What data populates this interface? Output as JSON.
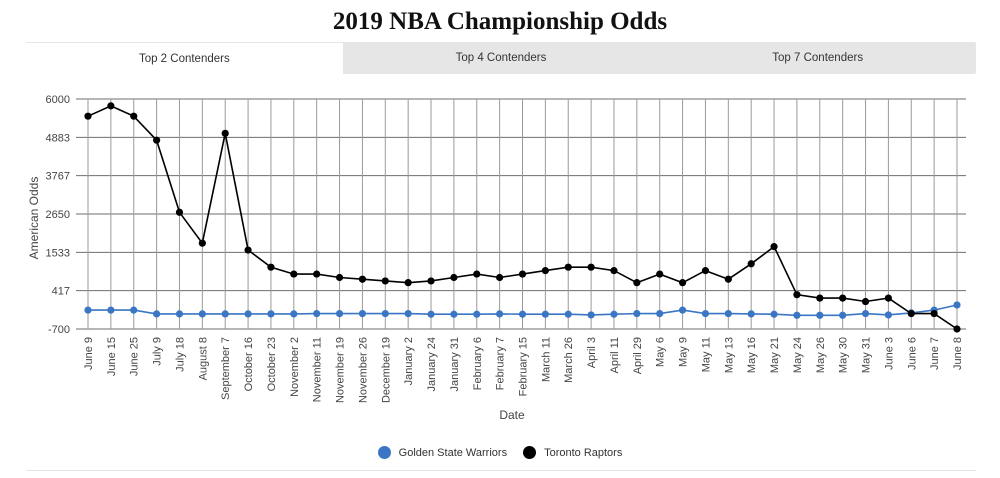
{
  "page": {
    "title": "2019 NBA Championship Odds"
  },
  "tabs": [
    {
      "label": "Top 2 Contenders",
      "active": true
    },
    {
      "label": "Top 4 Contenders",
      "active": false
    },
    {
      "label": "Top 7 Contenders",
      "active": false
    }
  ],
  "chart_data": {
    "type": "line",
    "title": "2019 NBA Championship Odds",
    "xlabel": "Date",
    "ylabel": "American Odds",
    "ylim": [
      -700,
      6000
    ],
    "yticks": [
      6000,
      4883,
      3767,
      2650,
      1533,
      417,
      -700
    ],
    "grid": true,
    "legend_position": "bottom",
    "categories": [
      "June 9",
      "June 15",
      "June 25",
      "July 9",
      "July 18",
      "August 8",
      "September 7",
      "October 16",
      "October 23",
      "November 2",
      "November 11",
      "November 19",
      "November 26",
      "December 19",
      "January 2",
      "January 24",
      "January 31",
      "February 6",
      "February 7",
      "February 15",
      "March 11",
      "March 26",
      "April 3",
      "April 11",
      "April 29",
      "May 6",
      "May 9",
      "May 11",
      "May 13",
      "May 16",
      "May 21",
      "May 24",
      "May 26",
      "May 30",
      "May 31",
      "June 3",
      "June 6",
      "June 7",
      "June 8"
    ],
    "series": [
      {
        "name": "Golden State Warriors",
        "color": "#3a76c4",
        "values": [
          -150,
          -150,
          -150,
          -260,
          -260,
          -260,
          -260,
          -260,
          -260,
          -260,
          -250,
          -250,
          -250,
          -250,
          -250,
          -270,
          -270,
          -270,
          -260,
          -270,
          -270,
          -270,
          -290,
          -270,
          -250,
          -250,
          -150,
          -250,
          -250,
          -260,
          -270,
          -300,
          -300,
          -300,
          -250,
          -290,
          -230,
          -150,
          0
        ]
      },
      {
        "name": "Toronto Raptors",
        "color": "#000000",
        "values": [
          5500,
          5800,
          5500,
          4800,
          2700,
          1800,
          5000,
          1600,
          1100,
          900,
          900,
          800,
          750,
          700,
          650,
          700,
          800,
          900,
          800,
          900,
          1000,
          1100,
          1100,
          1000,
          650,
          900,
          650,
          1000,
          750,
          1200,
          1700,
          300,
          200,
          200,
          100,
          200,
          -250,
          -250,
          -700
        ]
      }
    ]
  }
}
